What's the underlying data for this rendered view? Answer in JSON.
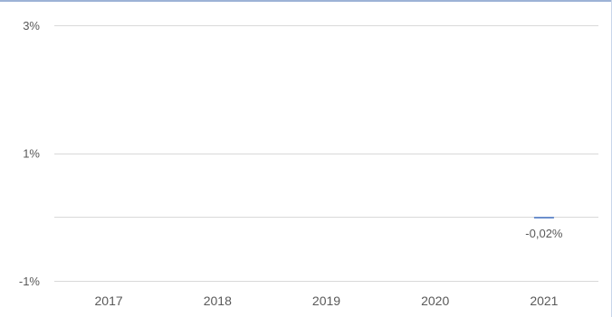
{
  "chart_data": {
    "type": "bar",
    "categories": [
      "2017",
      "2018",
      "2019",
      "2020",
      "2021"
    ],
    "series": [
      {
        "values": [
          null,
          null,
          null,
          null,
          -0.02
        ],
        "data_labels": [
          null,
          null,
          null,
          null,
          "-0,02%"
        ],
        "color": "#4472c4"
      }
    ],
    "y_ticks": [
      {
        "value": 3,
        "label": "3%"
      },
      {
        "value": 1,
        "label": "1%"
      },
      {
        "value": -1,
        "label": "-1%"
      }
    ],
    "gridlines_at": [
      3,
      1,
      0,
      -1
    ],
    "ylim": [
      -1,
      3
    ],
    "grid": true,
    "colors": {
      "grid": "#d9d9d9",
      "text": "#595959",
      "bar": "#4472c4"
    }
  }
}
